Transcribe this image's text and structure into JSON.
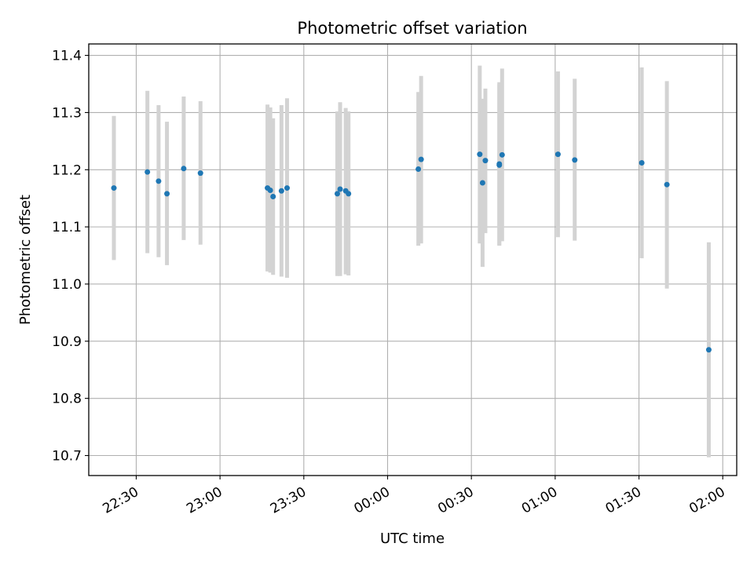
{
  "chart_data": {
    "type": "scatter",
    "title": "Photometric offset variation",
    "xlabel": "UTC time",
    "ylabel": "Photometric offset",
    "grid": true,
    "xlim": [
      "22:13",
      "02:05"
    ],
    "ylim": [
      10.665,
      11.42
    ],
    "xticks": [
      "22:30",
      "23:00",
      "23:30",
      "00:00",
      "00:30",
      "01:00",
      "01:30",
      "02:00"
    ],
    "yticks": [
      10.7,
      10.8,
      10.9,
      11.0,
      11.1,
      11.2,
      11.3,
      11.4
    ],
    "colors": {
      "points": "#1f77b4",
      "errorbars": "#d3d3d3",
      "grid": "#b0b0b0"
    },
    "points": [
      {
        "t": "22:22",
        "y": 11.168,
        "lo": 11.042,
        "hi": 11.294
      },
      {
        "t": "22:34",
        "y": 11.196,
        "lo": 11.054,
        "hi": 11.338
      },
      {
        "t": "22:38",
        "y": 11.18,
        "lo": 11.047,
        "hi": 11.313
      },
      {
        "t": "22:41",
        "y": 11.158,
        "lo": 11.033,
        "hi": 11.284
      },
      {
        "t": "22:47",
        "y": 11.202,
        "lo": 11.077,
        "hi": 11.328
      },
      {
        "t": "22:53",
        "y": 11.194,
        "lo": 11.069,
        "hi": 11.32
      },
      {
        "t": "23:17",
        "y": 11.168,
        "lo": 11.022,
        "hi": 11.314
      },
      {
        "t": "23:18",
        "y": 11.164,
        "lo": 11.02,
        "hi": 11.309
      },
      {
        "t": "23:19",
        "y": 11.153,
        "lo": 11.016,
        "hi": 11.29
      },
      {
        "t": "23:22",
        "y": 11.163,
        "lo": 11.013,
        "hi": 11.313
      },
      {
        "t": "23:24",
        "y": 11.168,
        "lo": 11.011,
        "hi": 11.325
      },
      {
        "t": "23:42",
        "y": 11.158,
        "lo": 11.014,
        "hi": 11.302
      },
      {
        "t": "23:43",
        "y": 11.166,
        "lo": 11.014,
        "hi": 11.318
      },
      {
        "t": "23:45",
        "y": 11.163,
        "lo": 11.017,
        "hi": 11.308
      },
      {
        "t": "23:46",
        "y": 11.158,
        "lo": 11.015,
        "hi": 11.302
      },
      {
        "t": "00:11",
        "y": 11.201,
        "lo": 11.067,
        "hi": 11.336
      },
      {
        "t": "00:12",
        "y": 11.218,
        "lo": 11.071,
        "hi": 11.364
      },
      {
        "t": "00:33",
        "y": 11.227,
        "lo": 11.071,
        "hi": 11.382
      },
      {
        "t": "00:34",
        "y": 11.177,
        "lo": 11.03,
        "hi": 11.324
      },
      {
        "t": "00:35",
        "y": 11.216,
        "lo": 11.089,
        "hi": 11.342
      },
      {
        "t": "00:40",
        "y": 11.21,
        "lo": 11.068,
        "hi": 11.353
      },
      {
        "t": "00:40",
        "y": 11.208,
        "lo": 11.067,
        "hi": 11.35
      },
      {
        "t": "00:41",
        "y": 11.226,
        "lo": 11.075,
        "hi": 11.377
      },
      {
        "t": "01:01",
        "y": 11.227,
        "lo": 11.082,
        "hi": 11.372
      },
      {
        "t": "01:07",
        "y": 11.217,
        "lo": 11.076,
        "hi": 11.359
      },
      {
        "t": "01:31",
        "y": 11.212,
        "lo": 11.045,
        "hi": 11.379
      },
      {
        "t": "01:40",
        "y": 11.174,
        "lo": 10.992,
        "hi": 11.355
      },
      {
        "t": "01:55",
        "y": 10.885,
        "lo": 10.697,
        "hi": 11.073
      }
    ]
  }
}
